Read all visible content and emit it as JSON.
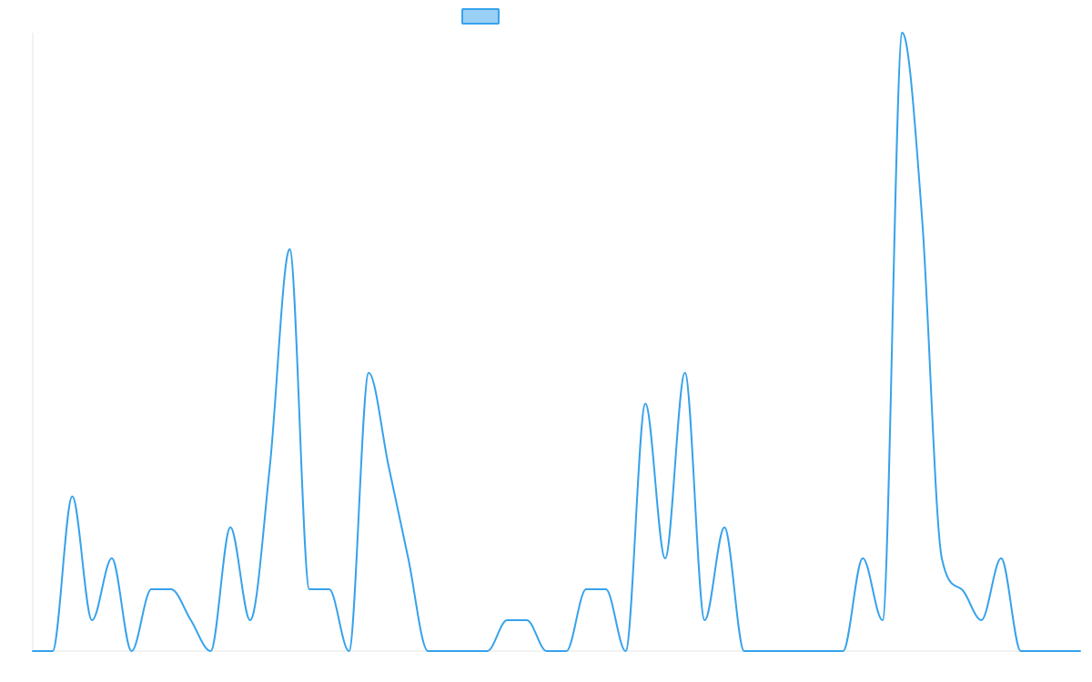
{
  "chart_data": {
    "type": "line",
    "title": "",
    "xlabel": "",
    "ylabel": "",
    "grid": false,
    "legend_position": "top-center",
    "smooth": true,
    "x": [
      0,
      1,
      2,
      3,
      4,
      5,
      6,
      7,
      8,
      9,
      10,
      11,
      12,
      13,
      14,
      15,
      16,
      17,
      18,
      19,
      20,
      21,
      22,
      23,
      24,
      25,
      26,
      27,
      28,
      29,
      30,
      31,
      32,
      33,
      34,
      35,
      36,
      37,
      38,
      39,
      40,
      41,
      42,
      43,
      44,
      45,
      46,
      47,
      48,
      49,
      50,
      51,
      52,
      53
    ],
    "ylim": [
      0,
      20
    ],
    "series": [
      {
        "color": "#36a2eb",
        "fill": "#9ad0f5",
        "values": [
          0,
          0,
          5,
          1,
          3,
          0,
          2,
          2,
          1,
          0,
          4,
          1,
          6,
          13,
          2,
          2,
          0,
          9,
          6,
          3,
          0,
          0,
          0,
          0,
          1,
          1,
          0,
          0,
          2,
          2,
          0,
          8,
          3,
          9,
          1,
          4,
          0,
          0,
          0,
          0,
          0,
          0,
          3,
          1,
          20,
          14,
          3,
          2,
          1,
          3,
          0,
          0,
          0,
          0
        ]
      }
    ]
  }
}
